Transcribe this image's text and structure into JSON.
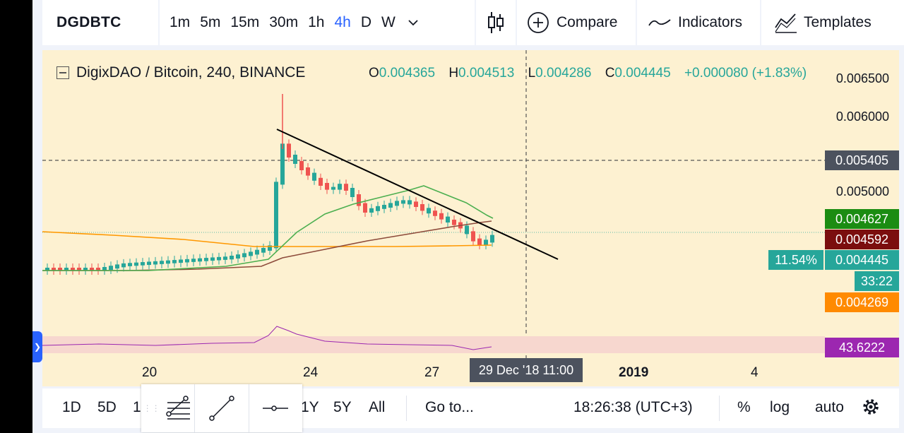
{
  "toolbar": {
    "symbol": "DGDBTC",
    "intervals": [
      "1m",
      "5m",
      "15m",
      "30m",
      "1h",
      "4h",
      "D",
      "W"
    ],
    "active_interval": "4h",
    "compare_label": "Compare",
    "indicators_label": "Indicators",
    "templates_label": "Templates"
  },
  "chart": {
    "title": "DigixDAO / Bitcoin, 240, BINANCE",
    "ohlc": {
      "o_key": "O",
      "o": "0.004365",
      "h_key": "H",
      "h": "0.004513",
      "l_key": "L",
      "l": "0.004286",
      "c_key": "C",
      "c": "0.004445",
      "change": "+0.000080 (+1.83%)"
    },
    "y_labels": [
      "0.006500",
      "0.006000",
      "0.005000"
    ],
    "tags": {
      "crosshair": "0.005405",
      "ma_green": "0.004627",
      "ma_red": "0.004592",
      "last": "0.004445",
      "last_pct": "11.54%",
      "countdown": "33:22",
      "ma_orange": "0.004269",
      "rsi": "43.6222"
    },
    "x_labels": [
      "20",
      "24",
      "27",
      "2019",
      "4"
    ],
    "crosshair_date": "29 Dec '18   11:00",
    "colors": {
      "up": "#26a69a",
      "down": "#ef5350",
      "ma_green": "#4caf50",
      "ma_red": "#8d4b3b",
      "ma_orange": "#ff9800",
      "rsi": "#9c27b0",
      "background": "#fdf1d1"
    }
  },
  "bottom": {
    "ranges": [
      "1D",
      "5D",
      "1",
      "1Y",
      "5Y",
      "All"
    ],
    "goto_label": "Go to...",
    "clock": "18:26:38 (UTC+3)",
    "pct_label": "%",
    "log_label": "log",
    "auto_label": "auto"
  }
}
